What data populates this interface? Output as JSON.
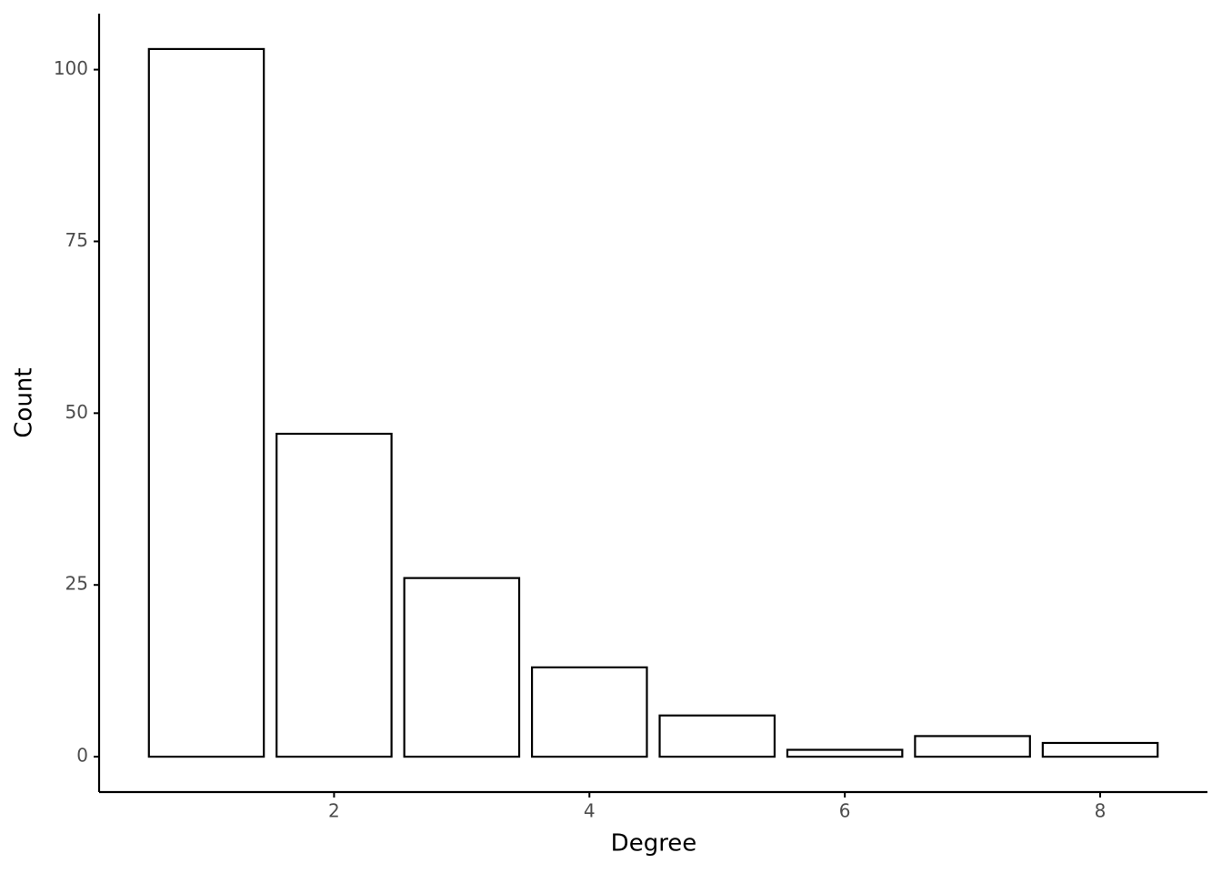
{
  "chart_data": {
    "type": "bar",
    "x_label": "Degree",
    "y_label": "Count",
    "x": [
      1,
      2,
      3,
      4,
      5,
      6,
      7,
      8
    ],
    "values": [
      103,
      47,
      26,
      13,
      6,
      1,
      3,
      2
    ],
    "color": "#ffffff",
    "edgecolor": "#000000",
    "xlim": [
      0.16,
      8.84
    ],
    "xticks": [
      2,
      4,
      6,
      8
    ],
    "ylim": [
      -5.15,
      108.15
    ],
    "yticks": [
      0,
      25,
      50,
      75,
      100
    ],
    "grid": false
  }
}
